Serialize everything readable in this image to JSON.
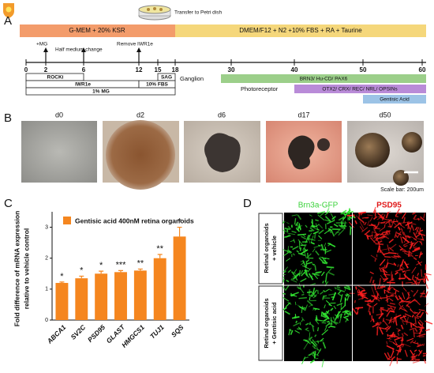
{
  "panels": {
    "a": "A",
    "b": "B",
    "c": "C",
    "d": "D"
  },
  "timeline": {
    "transfer": "Transfer to Petri dish",
    "media": [
      "G-MEM + 20% KSR",
      "DMEM/F12 + N2 +10% FBS + RA + Taurine"
    ],
    "events": [
      "+MG",
      "Half medium change",
      "Remove IWR1e"
    ],
    "days": [
      0,
      2,
      6,
      12,
      15,
      18,
      30,
      40,
      50,
      60
    ],
    "treatments": [
      "ROCKi",
      "IWR1e",
      "1% MG",
      "SAG",
      "10% FBS"
    ],
    "stages": [
      "Ganglion",
      "Photoreceptor"
    ],
    "markers": [
      "BRN3/ Hu-CD/ PAX6",
      "OTX2/ CRX/ REC/ NRL/ OPSINs",
      "Gentisic Acid"
    ]
  },
  "images": {
    "labels": [
      "d0",
      "d2",
      "d6",
      "d17",
      "d50"
    ],
    "scale_bar": "Scale bar: 200um"
  },
  "chart_data": {
    "type": "bar",
    "ylabel": [
      "Fold difference of mRNA expression",
      "relative to vehicle control"
    ],
    "categories": [
      "ABCA1",
      "SV2C",
      "PSD95",
      "GLAST",
      "HMGCS1",
      "TUJ1",
      "SQS"
    ],
    "series": [
      {
        "name": "Gentisic acid 400nM retina organoids",
        "color": "#f5861f",
        "values": [
          1.2,
          1.35,
          1.5,
          1.55,
          1.6,
          2.0,
          2.7
        ],
        "errors": [
          0.03,
          0.07,
          0.08,
          0.05,
          0.05,
          0.12,
          0.3
        ],
        "significance": [
          "*",
          "*",
          "*",
          "***",
          "**",
          "**",
          "*"
        ]
      }
    ],
    "ylim": [
      0,
      3.5
    ],
    "yticks": [
      0,
      1,
      2,
      3
    ]
  },
  "staining": {
    "channels": [
      "Brn3a-GFP",
      "PSD95"
    ],
    "rows": [
      [
        "Retinal organoids",
        "+ vehicle"
      ],
      [
        "Retinal organoids",
        "+ Gentisic acid"
      ]
    ]
  }
}
